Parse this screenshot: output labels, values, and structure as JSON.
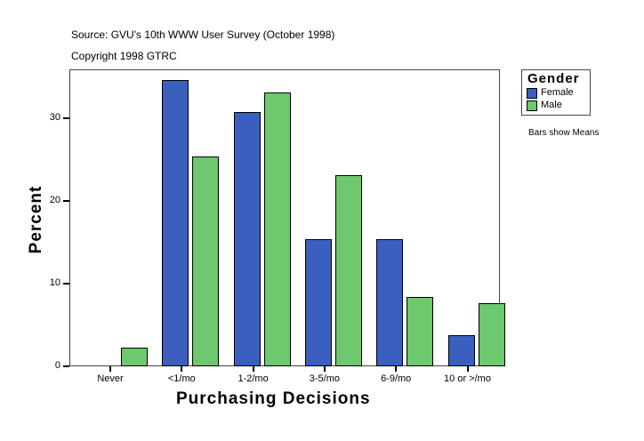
{
  "header": {
    "source": "Source: GVU's 10th WWW User Survey (October 1998)",
    "copyright": "Copyright 1998 GTRC"
  },
  "note": "Bars show Means",
  "colors": {
    "Female": "#3a5fbf",
    "Male": "#6ec86e"
  },
  "chart_data": {
    "type": "bar",
    "title": "Source: GVU's 10th WWW User Survey (October 1998)",
    "subtitle": "Copyright 1998 GTRC",
    "xlabel": "Purchasing Decisions",
    "ylabel": "Percent",
    "categories": [
      "Never",
      "<1/mo",
      "1-2/mo",
      "3-5/mo",
      "6-9/mo",
      "10 or >/mo"
    ],
    "series": [
      {
        "name": "Female",
        "values": [
          0,
          34.6,
          30.8,
          15.4,
          15.4,
          3.8
        ]
      },
      {
        "name": "Male",
        "values": [
          2.3,
          25.4,
          33.1,
          23.1,
          8.4,
          7.6
        ]
      }
    ],
    "ylim": [
      0,
      36
    ],
    "yticks": [
      0,
      10,
      20,
      30
    ],
    "legend": {
      "title": "Gender",
      "position": "right",
      "entries": [
        "Female",
        "Male"
      ]
    },
    "grid": false,
    "annotation": "Bars show Means"
  }
}
